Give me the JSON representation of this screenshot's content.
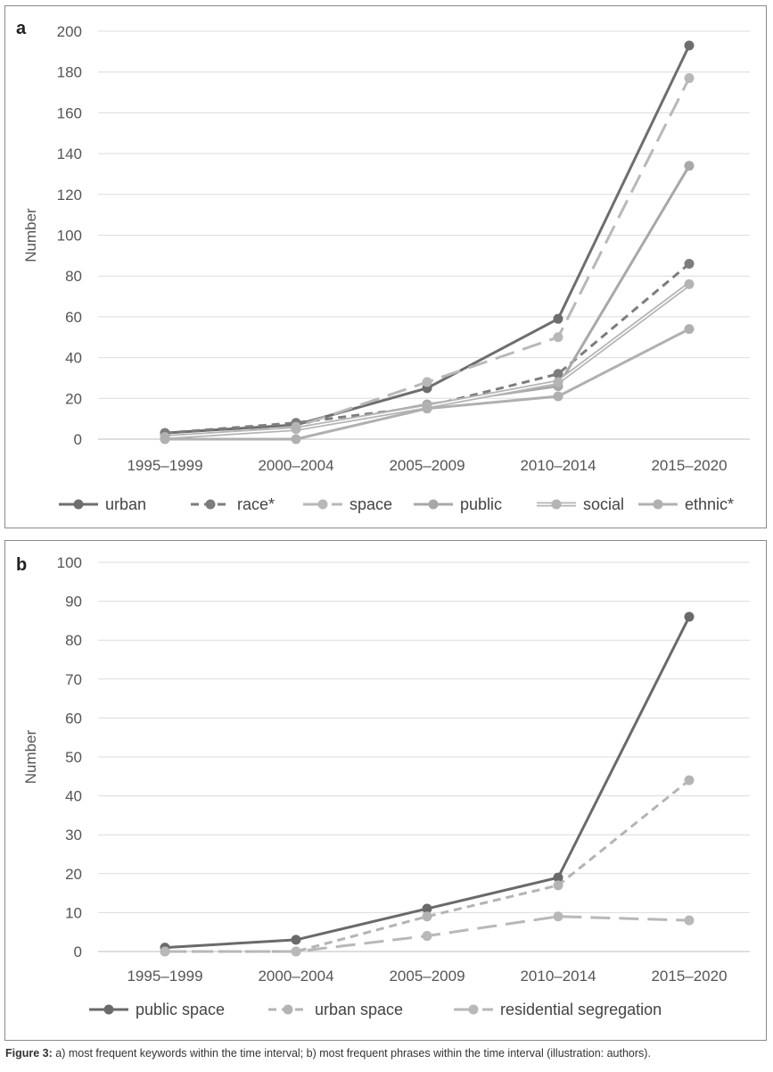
{
  "chart_data": [
    {
      "panel": "a",
      "type": "line",
      "categories": [
        "1995–1999",
        "2000–2004",
        "2005–2009",
        "2010–2014",
        "2015–2020"
      ],
      "ylabel": "Number",
      "ylim": [
        0,
        200
      ],
      "yticks": [
        0,
        20,
        40,
        60,
        80,
        100,
        120,
        140,
        160,
        180,
        200
      ],
      "grid": true,
      "legend": "bottom",
      "series": [
        {
          "name": "urban",
          "values": [
            3,
            7,
            25,
            59,
            193
          ],
          "color": "#6e6e6e",
          "dash": "solid"
        },
        {
          "name": "race*",
          "values": [
            3,
            8,
            16,
            32,
            86
          ],
          "color": "#7d7d7d",
          "dash": "dashed"
        },
        {
          "name": "space",
          "values": [
            1,
            6,
            28,
            50,
            177
          ],
          "color": "#b8b8b8",
          "dash": "longdash"
        },
        {
          "name": "public",
          "values": [
            1,
            5,
            17,
            26,
            134
          ],
          "color": "#a8a8a8",
          "dash": "solid"
        },
        {
          "name": "social",
          "values": [
            1,
            5,
            16,
            28,
            76
          ],
          "color": "#b4b4b4",
          "dash": "double"
        },
        {
          "name": "ethnic*",
          "values": [
            0,
            0,
            15,
            21,
            54
          ],
          "color": "#b0b0b0",
          "dash": "solid"
        }
      ]
    },
    {
      "panel": "b",
      "type": "line",
      "categories": [
        "1995–1999",
        "2000–2004",
        "2005–2009",
        "2010–2014",
        "2015–2020"
      ],
      "ylabel": "Number",
      "ylim": [
        0,
        100
      ],
      "yticks": [
        0,
        10,
        20,
        30,
        40,
        50,
        60,
        70,
        80,
        90,
        100
      ],
      "grid": true,
      "legend": "bottom",
      "series": [
        {
          "name": "public space",
          "values": [
            1,
            3,
            11,
            19,
            86
          ],
          "color": "#6a6a6a",
          "dash": "solid"
        },
        {
          "name": "urban space",
          "values": [
            0,
            0,
            9,
            17,
            44
          ],
          "color": "#b4b4b4",
          "dash": "dashed"
        },
        {
          "name": "residential segregation",
          "values": [
            0,
            0,
            4,
            9,
            8
          ],
          "color": "#b8b8b8",
          "dash": "longdash"
        }
      ]
    }
  ],
  "caption": {
    "label": "Figure 3:",
    "text": " a) most frequent keywords within the time interval; b) most frequent phrases within the time interval (illustration: authors)."
  }
}
